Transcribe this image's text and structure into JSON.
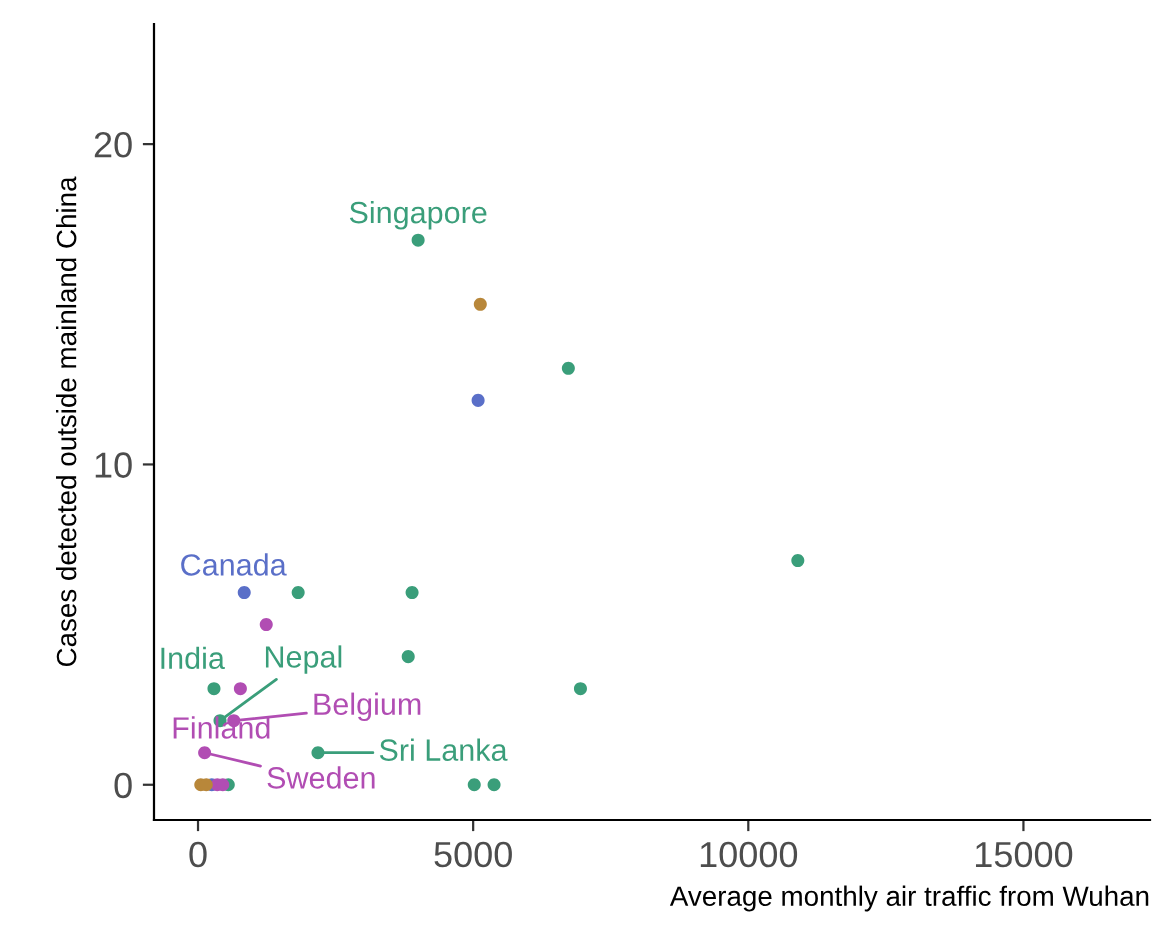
{
  "chart_data": {
    "type": "scatter",
    "xlabel": "Average monthly air traffic from Wuhan",
    "ylabel": "Cases detected outside mainland China",
    "xlim": [
      -800,
      17300
    ],
    "ylim": [
      -1.1,
      23.75
    ],
    "xticks": [
      0,
      5000,
      10000,
      15000
    ],
    "yticks": [
      0,
      10,
      20
    ],
    "grid": false,
    "legend": false,
    "marker": "circle",
    "series": [
      {
        "color": "#3a9e7a",
        "x": [
          4000,
          6730,
          10900,
          1820,
          3890,
          3820,
          6950,
          290,
          400,
          2180,
          5020,
          5380,
          550
        ],
        "values": [
          17,
          13,
          7,
          6,
          6,
          4,
          3,
          3,
          2,
          1,
          0,
          0,
          0
        ]
      },
      {
        "color": "#5a6fc8",
        "x": [
          840,
          5090,
          250
        ],
        "values": [
          6,
          12,
          0
        ]
      },
      {
        "color": "#b14db3",
        "x": [
          1240,
          770,
          650,
          120,
          350,
          450
        ],
        "values": [
          5,
          3,
          2,
          1,
          0,
          0
        ]
      },
      {
        "color": "#b8873a",
        "x": [
          5130,
          50,
          150
        ],
        "values": [
          15,
          0,
          0
        ]
      }
    ],
    "annotations": [
      {
        "text": "Singapore",
        "x": 4000,
        "y": 17
      },
      {
        "text": "Canada",
        "x": 840,
        "y": 6
      },
      {
        "text": "India",
        "x": 290,
        "y": 3
      },
      {
        "text": "Nepal",
        "x": 400,
        "y": 2
      },
      {
        "text": "Belgium",
        "x": 650,
        "y": 2
      },
      {
        "text": "Finland",
        "x": 120,
        "y": 1
      },
      {
        "text": "Sri Lanka",
        "x": 2180,
        "y": 1
      },
      {
        "text": "Sweden",
        "x": 120,
        "y": 1
      }
    ]
  }
}
